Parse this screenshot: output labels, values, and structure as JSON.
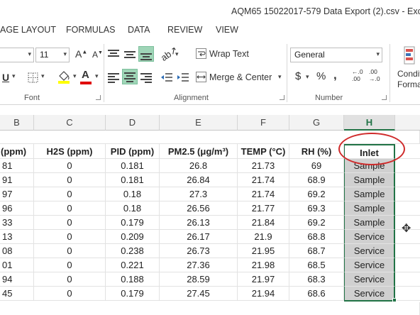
{
  "window": {
    "title": "AQM65 15022017-579 Data Export (2).csv - Exc"
  },
  "tabs": [
    "AGE LAYOUT",
    "FORMULAS",
    "DATA",
    "REVIEW",
    "VIEW"
  ],
  "ribbon": {
    "font": {
      "size": "11",
      "grow_label": "A",
      "shrink_label": "A",
      "underline_label": "U",
      "font_color_label": "A",
      "group_label": "Font"
    },
    "alignment": {
      "wrap_text": "Wrap Text",
      "merge_center": "Merge & Center",
      "group_label": "Alignment"
    },
    "number": {
      "format": "General",
      "currency": "$",
      "percent": "%",
      "comma": ",",
      "inc_decimal_top": "←.0",
      "inc_decimal_bottom": ".00",
      "dec_decimal_top": ".00",
      "dec_decimal_bottom": "→.0",
      "group_label": "Number"
    },
    "styles": {
      "conditional_line1": "Conditi",
      "conditional_line2": "Format"
    }
  },
  "columns": [
    "B",
    "C",
    "D",
    "E",
    "F",
    "G",
    "H"
  ],
  "headers": [
    "(ppm)",
    "H2S (ppm)",
    "PID (ppm)",
    "PM2.5 (μg/m³)",
    "TEMP (°C)",
    "RH (%)",
    "Inlet"
  ],
  "rows": [
    [
      "81",
      "0",
      "0.181",
      "26.8",
      "21.73",
      "69",
      "Sample"
    ],
    [
      "91",
      "0",
      "0.181",
      "26.84",
      "21.74",
      "68.9",
      "Sample"
    ],
    [
      "97",
      "0",
      "0.18",
      "27.3",
      "21.74",
      "69.2",
      "Sample"
    ],
    [
      "96",
      "0",
      "0.18",
      "26.56",
      "21.77",
      "69.3",
      "Sample"
    ],
    [
      "33",
      "0",
      "0.179",
      "26.13",
      "21.84",
      "69.2",
      "Sample"
    ],
    [
      "13",
      "0",
      "0.209",
      "26.17",
      "21.9",
      "68.8",
      "Service"
    ],
    [
      "08",
      "0",
      "0.238",
      "26.73",
      "21.95",
      "68.7",
      "Service"
    ],
    [
      "01",
      "0",
      "0.221",
      "27.36",
      "21.98",
      "68.5",
      "Service"
    ],
    [
      "94",
      "0",
      "0.188",
      "28.59",
      "21.97",
      "68.3",
      "Service"
    ],
    [
      "45",
      "0",
      "0.179",
      "27.45",
      "21.94",
      "68.6",
      "Service"
    ]
  ],
  "colors": {
    "accent": "#217346",
    "annotation": "#cf2a2a",
    "active_button": "#9fd5b7",
    "selection": "#d0d0d0"
  }
}
